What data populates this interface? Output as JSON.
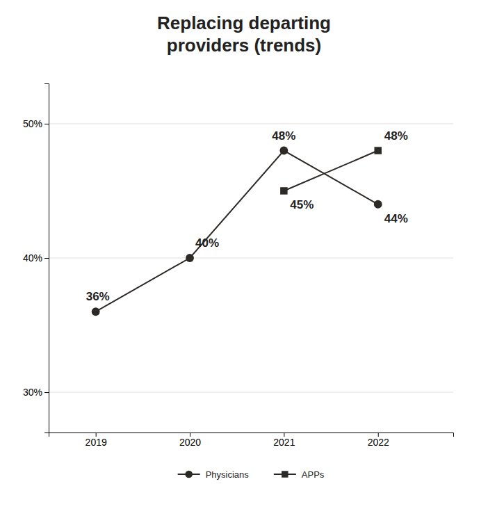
{
  "chart_data": {
    "type": "line",
    "title": "Replacing departing\nproviders (trends)",
    "x": [
      2019,
      2020,
      2021,
      2022
    ],
    "series": [
      {
        "name": "Physicians",
        "color": "#2d2926",
        "marker": "circle",
        "line_style": "solid",
        "values": [
          36,
          40,
          48,
          44
        ],
        "value_labels": [
          "36%",
          "40%",
          "48%",
          "44%"
        ]
      },
      {
        "name": "APPs",
        "color": "#2d2926",
        "marker": "square",
        "line_style": "solid",
        "values": [
          null,
          null,
          45,
          48
        ],
        "value_labels": [
          null,
          null,
          "45%",
          "48%"
        ]
      }
    ],
    "xlim": [
      2018.5,
      2022.8
    ],
    "xticks": [
      2019,
      2020,
      2021,
      2022
    ],
    "ylim": [
      27,
      53
    ],
    "yticks": [
      {
        "value": 30,
        "label": "30%"
      },
      {
        "value": 40,
        "label": "40%"
      },
      {
        "value": 50,
        "label": "50%"
      }
    ],
    "grid": true,
    "data_labels": true,
    "legend": "bottom"
  }
}
